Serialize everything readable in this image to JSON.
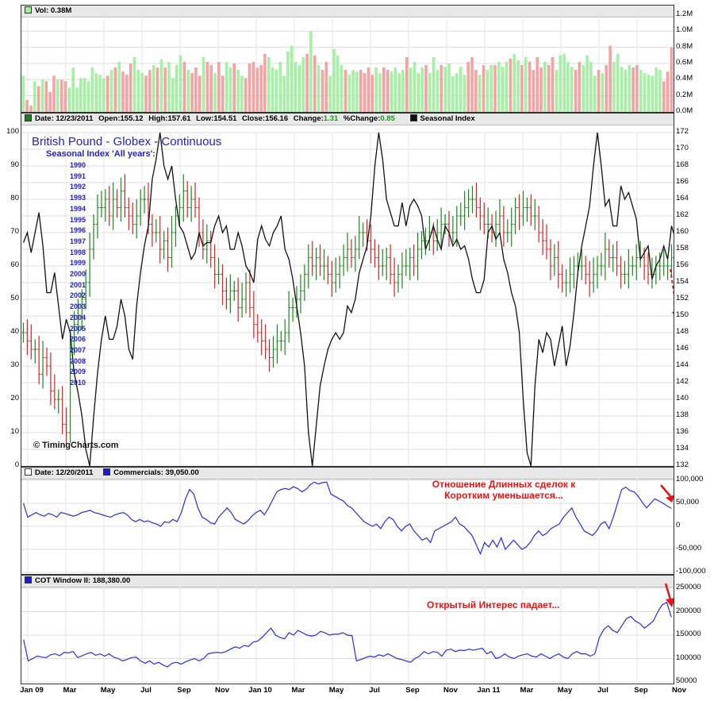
{
  "vol_panel": {
    "header": "Vol: 0.38M",
    "ticks": [
      "1.2M",
      "1.0M",
      "0.8M",
      "0.6M",
      "0.4M",
      "0.2M",
      "0.0M"
    ]
  },
  "price_panel": {
    "date": "Date: 12/23/2011",
    "open": "Open:155.12",
    "high": "High:157.61",
    "low": "Low:154.51",
    "close": "Close:156.16",
    "change_label": "Change:",
    "change": "1.31",
    "pct_label": "%Change:",
    "pct": "0.85",
    "seasonal_legend": "Seasonal Index",
    "left_ticks": [
      "100",
      "90",
      "80",
      "70",
      "60",
      "50",
      "40",
      "30",
      "20",
      "10",
      "0"
    ],
    "right_ticks": [
      "172",
      "170",
      "168",
      "166",
      "164",
      "162",
      "160",
      "158",
      "156",
      "154",
      "152",
      "150",
      "148",
      "146",
      "144",
      "142",
      "140",
      "138",
      "136",
      "134",
      "132"
    ],
    "title": "British Pound - Globex - Continuous",
    "subtitle": "Seasonal Index 'All years':",
    "years": [
      "1990",
      "1991",
      "1992",
      "1993",
      "1994",
      "1995",
      "1996",
      "1997",
      "1998",
      "1999",
      "2000",
      "2001",
      "2002",
      "2003",
      "2004",
      "2005",
      "2006",
      "2007",
      "2008",
      "2009",
      "2010"
    ],
    "copyright": "© TimingCharts.com"
  },
  "comm_panel": {
    "date": "Date: 12/20/2011",
    "label": "Commercials: 39,050.00",
    "ticks": [
      "100,000",
      "50,000",
      "0",
      "-50,000",
      "-100,000"
    ],
    "note_line1": "Отношение Длинных сделок к",
    "note_line2": "Коротким уменьшается..."
  },
  "cot_panel": {
    "label": "COT Window II: 188,380.00",
    "ticks": [
      "250000",
      "200000",
      "150000",
      "100000",
      "50000"
    ],
    "note": "Открытый Интерес падает..."
  },
  "months": [
    "Jan 09",
    "Mar",
    "May",
    "Jul",
    "Sep",
    "Nov",
    "Jan 10",
    "Mar",
    "May",
    "Jul",
    "Sep",
    "Nov",
    "Jan 11",
    "Mar",
    "May",
    "Jul",
    "Sep",
    "Nov"
  ],
  "chart_data": [
    {
      "type": "bar",
      "title": "",
      "ylabel": "Vol",
      "ylim": [
        0,
        1.2
      ],
      "series": [
        {
          "name": "Vol",
          "values": [
            0.45,
            0.15,
            0.08,
            0.38,
            0.32,
            0.4,
            0.38,
            0.25,
            0.45,
            0.4,
            0.4,
            0.38,
            0.3,
            0.55,
            0.3,
            0.42,
            0.42,
            0.38,
            0.55,
            0.48,
            0.46,
            0.42,
            0.45,
            0.52,
            0.55,
            0.62,
            0.5,
            0.46,
            0.6,
            0.68,
            0.52,
            0.48,
            0.45,
            0.52,
            0.58,
            0.55,
            0.65,
            0.55,
            0.62,
            0.42,
            0.58,
            0.7,
            0.62,
            0.52,
            0.48,
            0.55,
            0.45,
            0.68,
            0.62,
            0.58,
            0.48,
            0.62,
            0.45,
            0.62,
            0.55,
            0.6,
            0.52,
            0.45,
            0.42,
            0.6,
            0.62,
            0.55,
            0.58,
            0.72,
            0.68,
            0.55,
            0.52,
            0.62,
            0.45,
            0.75,
            0.82,
            0.62,
            0.58,
            0.68,
            0.72,
            1.0,
            0.7,
            0.58,
            0.52,
            0.62,
            0.45,
            0.78,
            0.7,
            0.58,
            0.52,
            0.46,
            0.52,
            0.5,
            0.52,
            0.48,
            0.55,
            0.46,
            0.55,
            0.48,
            0.55,
            0.52,
            0.5,
            0.55,
            0.48,
            0.52,
            0.68,
            0.55,
            0.62,
            0.48,
            0.55,
            0.58,
            0.48,
            0.68,
            0.52,
            0.58,
            0.56,
            0.6,
            0.44,
            0.48,
            0.56,
            0.46,
            0.62,
            0.68,
            0.52,
            0.46,
            0.58,
            0.52,
            0.58,
            0.58,
            0.62,
            0.56,
            0.62,
            0.66,
            0.72,
            0.64,
            0.58,
            0.68,
            0.62,
            0.52,
            0.68,
            0.55,
            0.62,
            0.58,
            0.68,
            0.52,
            0.7,
            0.72,
            0.62,
            0.56,
            0.52,
            0.62,
            0.58,
            0.7,
            0.62,
            0.45,
            0.52,
            0.48,
            0.58,
            0.82,
            0.62,
            0.72,
            0.56,
            0.52,
            0.58,
            0.55,
            0.58,
            0.52,
            0.48,
            0.46,
            0.45,
            0.55,
            0.52,
            0.38,
            0.5,
            0.8
          ]
        }
      ]
    },
    {
      "type": "line",
      "title": "British Pound - Globex - Continuous",
      "ylim": [
        132,
        172
      ],
      "seasonal_ylim": [
        0,
        100
      ],
      "series": [
        {
          "name": "Seasonal Index",
          "values": [
            67,
            70,
            64,
            70,
            76,
            66,
            52,
            52,
            58,
            48,
            38,
            44,
            40,
            28,
            22,
            15,
            5,
            0,
            15,
            28,
            38,
            45,
            38,
            38,
            42,
            50,
            45,
            35,
            32,
            48,
            58,
            66,
            72,
            86,
            92,
            100,
            90,
            86,
            90,
            80,
            72,
            70,
            66,
            62,
            64,
            70,
            66,
            67,
            67,
            72,
            75,
            70,
            72,
            65,
            65,
            70,
            66,
            60,
            58,
            55,
            68,
            72,
            68,
            66,
            70,
            72,
            75,
            65,
            62,
            56,
            48,
            40,
            30,
            10,
            0,
            12,
            24,
            30,
            35,
            38,
            40,
            38,
            40,
            48,
            46,
            50,
            58,
            62,
            66,
            75,
            90,
            100,
            92,
            80,
            76,
            72,
            72,
            79,
            72,
            78,
            80,
            78,
            75,
            65,
            68,
            72,
            68,
            65,
            72,
            70,
            66,
            68,
            65,
            66,
            62,
            56,
            52,
            52,
            56,
            70,
            72,
            68,
            70,
            62,
            58,
            52,
            48,
            40,
            20,
            4,
            0,
            24,
            38,
            34,
            40,
            38,
            30,
            36,
            42,
            30,
            36,
            46,
            58,
            66,
            72,
            78,
            90,
            100,
            90,
            78,
            80,
            72,
            72,
            84,
            80,
            82,
            78,
            74,
            62,
            64,
            66,
            56,
            60,
            62,
            66,
            62,
            72,
            68,
            64,
            70,
            70
          ]
        },
        {
          "name": "Price",
          "values": [
            148,
            147,
            146,
            146,
            143,
            145,
            144,
            141,
            140,
            140,
            137,
            136,
            147,
            149,
            150,
            152,
            154,
            158,
            161,
            163,
            163,
            164,
            162,
            164,
            163,
            165,
            163,
            162,
            161,
            162,
            164,
            164,
            161,
            160,
            160,
            158,
            159,
            157,
            160,
            162,
            163,
            165,
            163,
            164,
            163,
            160,
            158,
            159,
            157,
            155,
            155,
            153,
            152,
            153,
            153,
            151,
            152,
            154,
            151,
            149,
            148,
            147,
            146,
            145,
            146,
            147,
            147,
            148,
            151,
            151,
            152,
            153,
            155,
            157,
            156,
            157,
            156,
            156,
            155,
            154,
            155,
            156,
            157,
            158,
            157,
            158,
            160,
            160,
            159,
            158,
            157,
            156,
            156,
            157,
            155,
            154,
            155,
            156,
            156,
            157,
            156,
            158,
            159,
            159,
            160,
            159,
            160,
            161,
            161,
            160,
            160,
            162,
            162,
            163,
            164,
            164,
            163,
            162,
            161,
            161,
            160,
            161,
            162,
            160,
            160,
            161,
            163,
            162,
            163,
            163,
            162,
            162,
            160,
            159,
            158,
            156,
            157,
            155,
            154,
            154,
            155,
            156,
            156,
            156,
            155,
            154,
            155,
            156,
            156,
            158,
            157,
            157,
            156,
            155,
            155,
            156,
            156,
            157,
            157,
            156,
            155,
            155,
            156,
            156,
            156,
            156,
            157
          ]
        }
      ]
    },
    {
      "type": "line",
      "title": "",
      "ylim": [
        -100000,
        100000
      ],
      "series": [
        {
          "name": "Commercials",
          "values": [
            50000,
            20000,
            25000,
            30000,
            25000,
            22000,
            28000,
            25000,
            20000,
            30000,
            28000,
            25000,
            22000,
            25000,
            30000,
            32000,
            35000,
            30000,
            28000,
            25000,
            22000,
            20000,
            25000,
            28000,
            30000,
            25000,
            15000,
            10000,
            15000,
            10000,
            12000,
            8000,
            5000,
            0,
            10000,
            8000,
            15000,
            10000,
            30000,
            60000,
            80000,
            70000,
            40000,
            20000,
            15000,
            8000,
            5000,
            20000,
            30000,
            40000,
            30000,
            15000,
            10000,
            5000,
            12000,
            22000,
            30000,
            35000,
            25000,
            40000,
            58000,
            75000,
            80000,
            82000,
            80000,
            86000,
            82000,
            75000,
            80000,
            90000,
            96000,
            92000,
            95000,
            96000,
            70000,
            65000,
            60000,
            55000,
            45000,
            40000,
            30000,
            20000,
            10000,
            5000,
            0,
            5000,
            -5000,
            10000,
            20000,
            15000,
            0,
            -10000,
            0,
            5000,
            -10000,
            -20000,
            -30000,
            -25000,
            -35000,
            -10000,
            -5000,
            0,
            5000,
            10000,
            20000,
            5000,
            0,
            -10000,
            -20000,
            -40000,
            -60000,
            -35000,
            -45000,
            -30000,
            -45000,
            -25000,
            -50000,
            -40000,
            -30000,
            -40000,
            -50000,
            -45000,
            -35000,
            -20000,
            -10000,
            -20000,
            -15000,
            -5000,
            0,
            5000,
            20000,
            30000,
            40000,
            20000,
            5000,
            -10000,
            -15000,
            -20000,
            -10000,
            5000,
            10000,
            -5000,
            20000,
            50000,
            80000,
            85000,
            78000,
            75000,
            65000,
            52000,
            40000,
            50000,
            60000,
            55000,
            50000,
            44000,
            39050
          ]
        }
      ]
    },
    {
      "type": "line",
      "title": "",
      "ylim": [
        50000,
        250000
      ],
      "series": [
        {
          "name": "COT Window II",
          "values": [
            140000,
            95000,
            100000,
            105000,
            103000,
            102000,
            108000,
            110000,
            106000,
            113000,
            112000,
            115000,
            102000,
            106000,
            110000,
            113000,
            107000,
            110000,
            105000,
            110000,
            103000,
            100000,
            95000,
            98000,
            102000,
            103000,
            95000,
            90000,
            95000,
            88000,
            92000,
            86000,
            82000,
            90000,
            92000,
            88000,
            93000,
            97000,
            100000,
            95000,
            100000,
            110000,
            112000,
            113000,
            112000,
            115000,
            120000,
            125000,
            122000,
            128000,
            126000,
            135000,
            137000,
            145000,
            155000,
            165000,
            150000,
            145000,
            142000,
            155000,
            150000,
            160000,
            155000,
            150000,
            148000,
            150000,
            158000,
            155000,
            150000,
            152000,
            152000,
            155000,
            150000,
            149000,
            95000,
            98000,
            102000,
            105000,
            103000,
            108000,
            105000,
            110000,
            105000,
            100000,
            98000,
            95000,
            92000,
            100000,
            105000,
            115000,
            110000,
            115000,
            113000,
            105000,
            118000,
            120000,
            115000,
            118000,
            117000,
            120000,
            118000,
            120000,
            122000,
            110000,
            115000,
            100000,
            103000,
            110000,
            103000,
            100000,
            105000,
            108000,
            110000,
            105000,
            103000,
            110000,
            105000,
            100000,
            106000,
            110000,
            103000,
            100000,
            110000,
            115000,
            110000,
            110000,
            105000,
            110000,
            145000,
            162000,
            170000,
            160000,
            155000,
            170000,
            185000,
            190000,
            180000,
            175000,
            165000,
            172000,
            180000,
            200000,
            215000,
            220000,
            188380
          ]
        }
      ]
    }
  ]
}
